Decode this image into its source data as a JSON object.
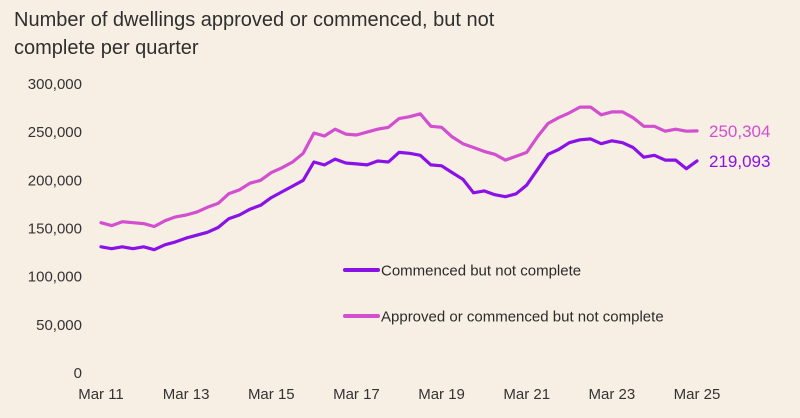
{
  "chart_data": {
    "type": "line",
    "title": "Number of dwellings approved or commenced, but not complete per quarter",
    "xlabel": "",
    "ylabel": "",
    "ylim": [
      0,
      300000
    ],
    "yticks": [
      0,
      50000,
      100000,
      150000,
      200000,
      250000,
      300000
    ],
    "ytick_labels": [
      "0",
      "50,000",
      "100,000",
      "150,000",
      "200,000",
      "250,000",
      "300,000"
    ],
    "xtick_labels": [
      "Mar 11",
      "Mar 13",
      "Mar 15",
      "Mar 17",
      "Mar 19",
      "Mar 21",
      "Mar 23",
      "Mar 25"
    ],
    "grid": false,
    "legend_placement": "bottom-center",
    "categories": [
      "Mar 11",
      "Jun 11",
      "Sep 11",
      "Dec 11",
      "Mar 12",
      "Jun 12",
      "Sep 12",
      "Dec 12",
      "Mar 13",
      "Jun 13",
      "Sep 13",
      "Dec 13",
      "Mar 14",
      "Jun 14",
      "Sep 14",
      "Dec 14",
      "Mar 15",
      "Jun 15",
      "Sep 15",
      "Dec 15",
      "Mar 16",
      "Jun 16",
      "Sep 16",
      "Dec 16",
      "Mar 17",
      "Jun 17",
      "Sep 17",
      "Dec 17",
      "Mar 18",
      "Jun 18",
      "Sep 18",
      "Dec 18",
      "Mar 19",
      "Jun 19",
      "Sep 19",
      "Dec 19",
      "Mar 20",
      "Jun 20",
      "Sep 20",
      "Dec 20",
      "Mar 21",
      "Jun 21",
      "Sep 21",
      "Dec 21",
      "Mar 22",
      "Jun 22",
      "Sep 22",
      "Dec 22",
      "Mar 23",
      "Jun 23",
      "Sep 23",
      "Dec 23",
      "Mar 24",
      "Jun 24",
      "Sep 24",
      "Dec 24",
      "Mar 25"
    ],
    "series": [
      {
        "name": "Commenced but not complete",
        "color": "#8a12e6",
        "end_label": "219,093",
        "values": [
          130000,
          128000,
          130000,
          128000,
          130000,
          127000,
          132000,
          135000,
          139000,
          142000,
          145000,
          150000,
          159000,
          163000,
          169000,
          173000,
          181000,
          187000,
          193000,
          199000,
          218000,
          215000,
          221000,
          217000,
          216000,
          215000,
          219000,
          218000,
          228000,
          227000,
          225000,
          215000,
          214000,
          207000,
          200000,
          186000,
          188000,
          184000,
          182000,
          185000,
          194000,
          210000,
          226000,
          231000,
          238000,
          241000,
          242000,
          237000,
          240000,
          238000,
          233000,
          223000,
          225000,
          220000,
          220000,
          211000,
          219093
        ]
      },
      {
        "name": "Approved or commenced but not complete",
        "color": "#d24fd0",
        "end_label": "250,304",
        "values": [
          155000,
          152000,
          156000,
          155000,
          154000,
          151000,
          157000,
          161000,
          163000,
          166000,
          171000,
          175000,
          185000,
          189000,
          196000,
          199000,
          207000,
          212000,
          218000,
          227000,
          248000,
          245000,
          252000,
          247000,
          246000,
          249000,
          252000,
          254000,
          263000,
          265000,
          268000,
          255000,
          254000,
          244000,
          237000,
          233000,
          229000,
          226000,
          220000,
          224000,
          228000,
          244000,
          258000,
          264000,
          269000,
          275000,
          275000,
          267000,
          270000,
          270000,
          264000,
          255000,
          255000,
          250000,
          252000,
          250000,
          250304
        ]
      }
    ]
  }
}
